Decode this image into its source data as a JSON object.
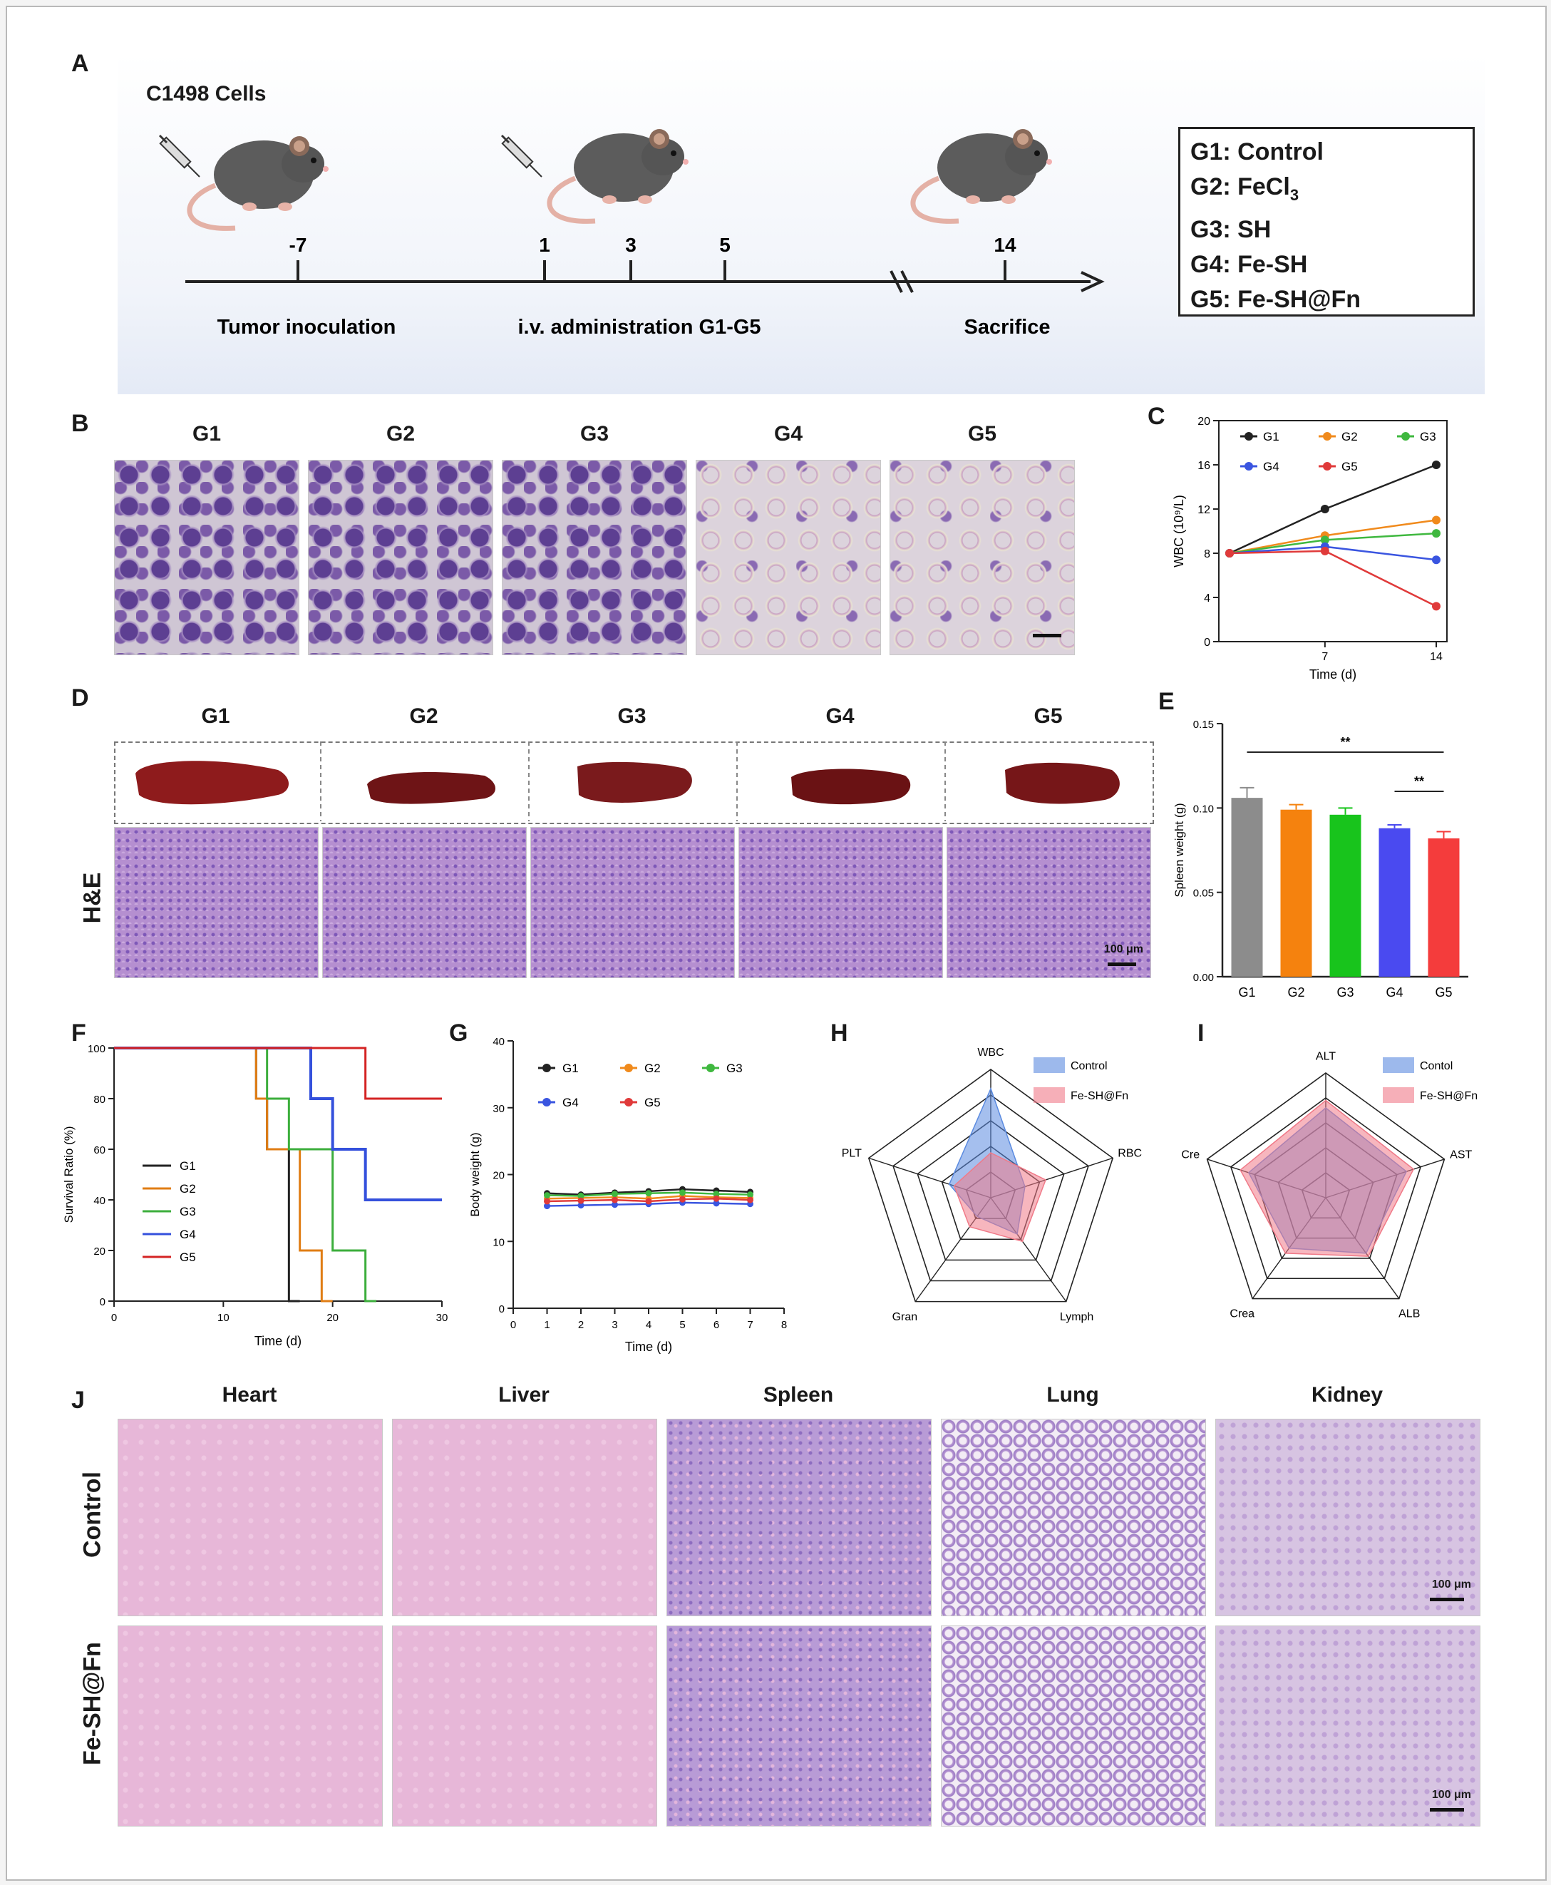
{
  "panel_labels": {
    "a": "A",
    "b": "B",
    "c": "C",
    "d": "D",
    "e": "E",
    "f": "F",
    "g": "G",
    "h": "H",
    "i": "I",
    "j": "J"
  },
  "panelA": {
    "cells_label": "C1498 Cells",
    "timeline_ticks": [
      "-7",
      "1",
      "3",
      "5",
      "14"
    ],
    "stage_labels": [
      "Tumor inoculation",
      "i.v. administration G1-G5",
      "Sacrifice"
    ],
    "groups_legend": [
      "G1: Control",
      "G2: FeCl",
      "G3: SH",
      "G4: Fe-SH",
      "G5: Fe-SH@Fn"
    ],
    "fecl_subscript": "3"
  },
  "panelB": {
    "headers": [
      "G1",
      "G2",
      "G3",
      "G4",
      "G5"
    ]
  },
  "panelD": {
    "headers": [
      "G1",
      "G2",
      "G3",
      "G4",
      "G5"
    ],
    "row_label": "H&E",
    "scale_label": "100 μm"
  },
  "panelJ": {
    "columns": [
      "Heart",
      "Liver",
      "Spleen",
      "Lung",
      "Kidney"
    ],
    "rows": [
      "Control",
      "Fe-SH@Fn"
    ],
    "scale_label": "100 μm"
  },
  "chart_data": [
    {
      "id": "C",
      "type": "line",
      "xlabel": "Time (d)",
      "ylabel": "WBC (10⁹/L)",
      "x": [
        1,
        7,
        14
      ],
      "x_ticks": [
        "7",
        "14"
      ],
      "y_ticks": [
        "0",
        "4",
        "8",
        "12",
        "16",
        "20"
      ],
      "ylim": [
        0,
        20
      ],
      "series": [
        {
          "name": "G1",
          "color": "#222222",
          "values": [
            8,
            12,
            16
          ]
        },
        {
          "name": "G2",
          "color": "#f08a1c",
          "values": [
            8,
            9.6,
            11
          ]
        },
        {
          "name": "G3",
          "color": "#3fb83f",
          "values": [
            8,
            9.2,
            9.8
          ]
        },
        {
          "name": "G4",
          "color": "#3a55e0",
          "values": [
            8,
            8.6,
            7.4
          ]
        },
        {
          "name": "G5",
          "color": "#e03a3a",
          "values": [
            8,
            8.2,
            3.2
          ]
        }
      ]
    },
    {
      "id": "E",
      "type": "bar",
      "xlabel": "",
      "ylabel": "Spleen weight (g)",
      "categories": [
        "G1",
        "G2",
        "G3",
        "G4",
        "G5"
      ],
      "values": [
        0.106,
        0.099,
        0.096,
        0.088,
        0.082
      ],
      "errors": [
        0.006,
        0.003,
        0.004,
        0.002,
        0.004
      ],
      "colors": [
        "#8c8c8c",
        "#f5820e",
        "#18c41c",
        "#4a4af0",
        "#f43c3c"
      ],
      "y_ticks": [
        "0.00",
        "0.05",
        "0.10",
        "0.15"
      ],
      "ylim": [
        0,
        0.15
      ],
      "sig": [
        "**",
        "**"
      ]
    },
    {
      "id": "F",
      "type": "line",
      "title": "",
      "xlabel": "Time (d)",
      "ylabel": "Survival Ratio (%)",
      "x_ticks": [
        "0",
        "10",
        "20",
        "30"
      ],
      "y_ticks": [
        "0",
        "20",
        "40",
        "60",
        "80",
        "100"
      ],
      "xlim": [
        0,
        30
      ],
      "ylim": [
        0,
        100
      ],
      "series": [
        {
          "name": "G1",
          "color": "#222222",
          "steps": [
            [
              0,
              100
            ],
            [
              13,
              100
            ],
            [
              13,
              80
            ],
            [
              14,
              80
            ],
            [
              14,
              60
            ],
            [
              16,
              60
            ],
            [
              16,
              0
            ],
            [
              17,
              0
            ]
          ]
        },
        {
          "name": "G2",
          "color": "#e07d14",
          "steps": [
            [
              0,
              100
            ],
            [
              13,
              100
            ],
            [
              13,
              80
            ],
            [
              14,
              80
            ],
            [
              14,
              60
            ],
            [
              17,
              60
            ],
            [
              17,
              20
            ],
            [
              19,
              20
            ],
            [
              19,
              0
            ],
            [
              20,
              0
            ]
          ]
        },
        {
          "name": "G3",
          "color": "#3cae3c",
          "steps": [
            [
              0,
              100
            ],
            [
              14,
              100
            ],
            [
              14,
              80
            ],
            [
              16,
              80
            ],
            [
              16,
              60
            ],
            [
              20,
              60
            ],
            [
              20,
              20
            ],
            [
              23,
              20
            ],
            [
              23,
              0
            ],
            [
              24,
              0
            ]
          ]
        },
        {
          "name": "G4",
          "color": "#3450dc",
          "steps": [
            [
              0,
              100
            ],
            [
              18,
              100
            ],
            [
              18,
              80
            ],
            [
              20,
              80
            ],
            [
              20,
              60
            ],
            [
              23,
              60
            ],
            [
              23,
              40
            ],
            [
              30,
              40
            ]
          ]
        },
        {
          "name": "G5",
          "color": "#d42424",
          "steps": [
            [
              0,
              100
            ],
            [
              23,
              100
            ],
            [
              23,
              80
            ],
            [
              30,
              80
            ]
          ]
        }
      ]
    },
    {
      "id": "G",
      "type": "line",
      "xlabel": "Time (d)",
      "ylabel": "Body weight (g)",
      "x": [
        1,
        2,
        3,
        4,
        5,
        6,
        7
      ],
      "x_ticks": [
        "0",
        "1",
        "2",
        "3",
        "4",
        "5",
        "6",
        "7",
        "8"
      ],
      "y_ticks": [
        "0",
        "10",
        "20",
        "30",
        "40"
      ],
      "ylim": [
        0,
        40
      ],
      "xlim": [
        0,
        8
      ],
      "series": [
        {
          "name": "G1",
          "color": "#222222",
          "values": [
            17.2,
            17.0,
            17.3,
            17.5,
            17.8,
            17.6,
            17.4
          ]
        },
        {
          "name": "G2",
          "color": "#f08a1c",
          "values": [
            16.4,
            16.5,
            16.6,
            16.4,
            16.8,
            16.6,
            16.5
          ]
        },
        {
          "name": "G3",
          "color": "#3fb83f",
          "values": [
            16.9,
            16.8,
            17.1,
            17.2,
            17.3,
            17.1,
            17.0
          ]
        },
        {
          "name": "G4",
          "color": "#3a55e0",
          "values": [
            15.3,
            15.4,
            15.5,
            15.6,
            15.8,
            15.7,
            15.6
          ]
        },
        {
          "name": "G5",
          "color": "#e03a3a",
          "values": [
            16.0,
            16.1,
            16.2,
            16.0,
            16.3,
            16.4,
            16.2
          ]
        }
      ]
    },
    {
      "id": "H",
      "type": "radar",
      "axes": [
        "WBC",
        "RBC",
        "Lymph",
        "Gran",
        "PLT"
      ],
      "series": [
        {
          "name": "Control",
          "color": "#5b8be0",
          "values": [
            0.85,
            0.28,
            0.35,
            0.18,
            0.34
          ]
        },
        {
          "name": "Fe-SH@Fn",
          "color": "#f07a88",
          "values": [
            0.35,
            0.45,
            0.42,
            0.28,
            0.3
          ]
        }
      ]
    },
    {
      "id": "I",
      "type": "radar",
      "axes": [
        "ALT",
        "AST",
        "ALB",
        "Crea",
        "Cre"
      ],
      "series": [
        {
          "name": "Contol",
          "color": "#5b8be0",
          "values": [
            0.72,
            0.68,
            0.55,
            0.5,
            0.65
          ]
        },
        {
          "name": "Fe-SH@Fn",
          "color": "#f07a88",
          "values": [
            0.78,
            0.74,
            0.58,
            0.55,
            0.72
          ]
        }
      ]
    }
  ]
}
